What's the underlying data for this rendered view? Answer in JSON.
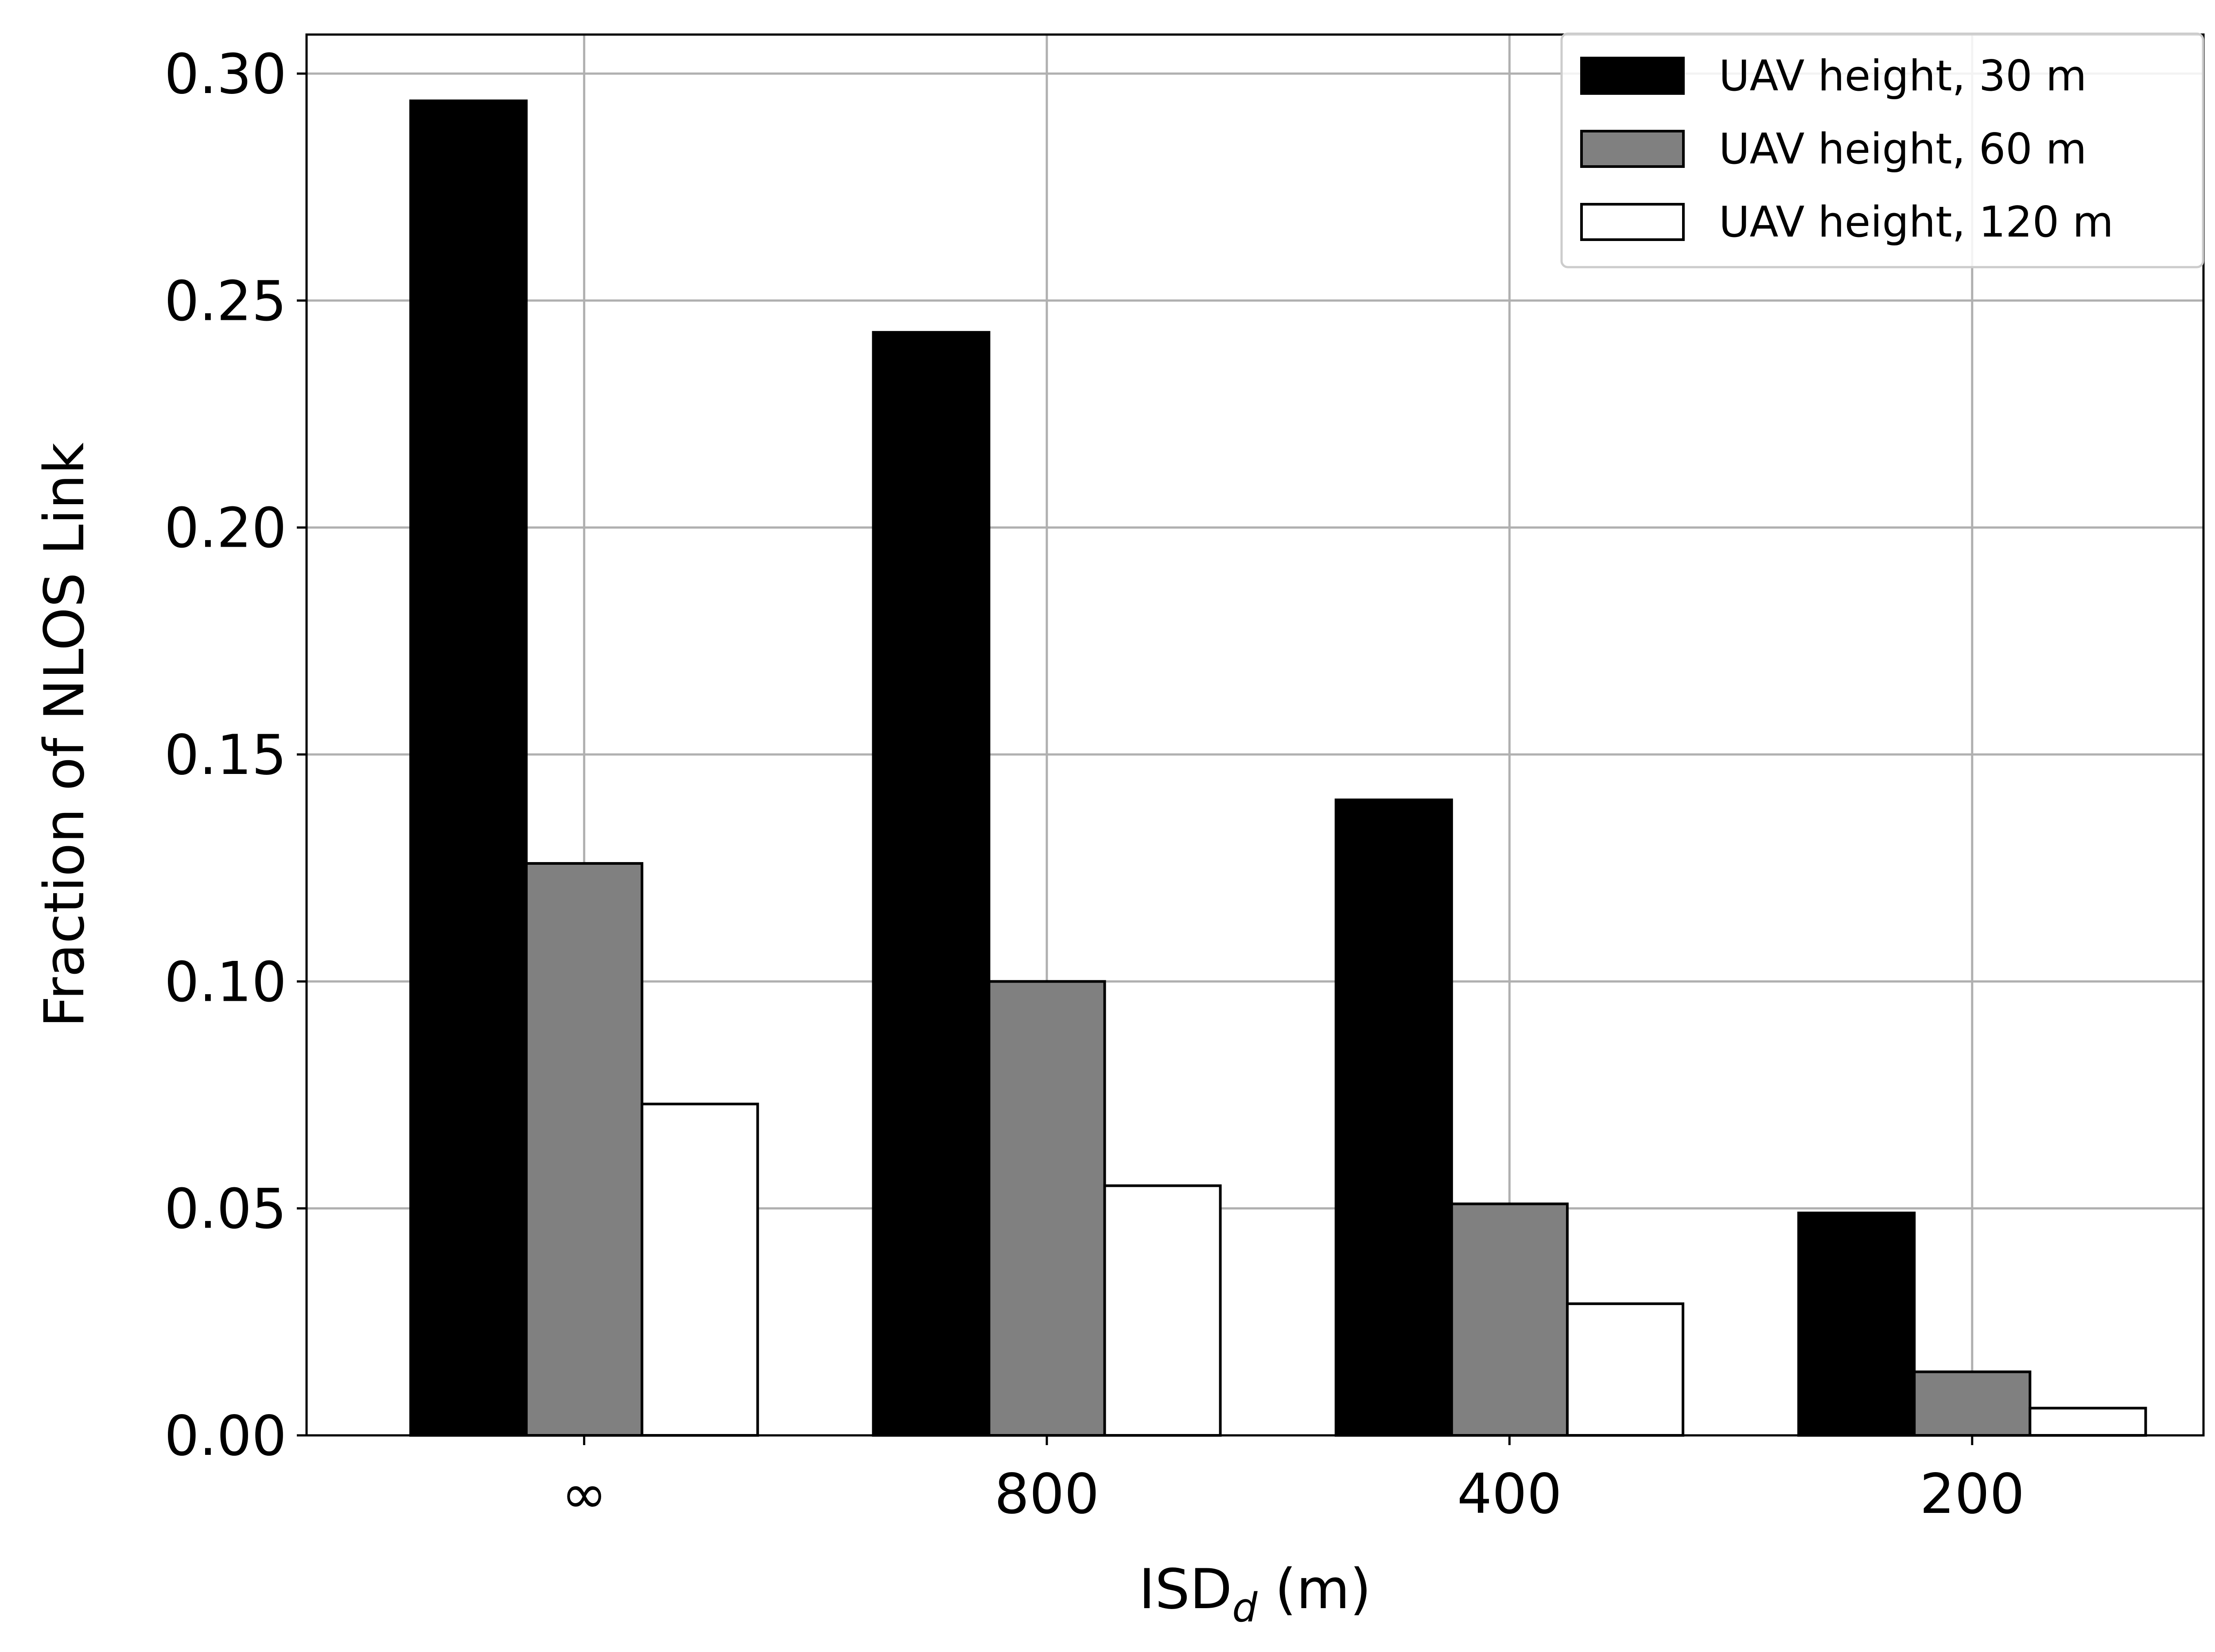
{
  "chart_data": {
    "type": "bar",
    "xlabel": "ISD",
    "xlabel_subscript": "d",
    "xlabel_suffix": " (m)",
    "ylabel": "Fraction of NLOS Link",
    "categories": [
      "∞",
      "800",
      "400",
      "200"
    ],
    "ylim": [
      0,
      0.3086
    ],
    "yticks": [
      0.0,
      0.05,
      0.1,
      0.15,
      0.2,
      0.25,
      0.3
    ],
    "ytick_labels": [
      "0.00",
      "0.05",
      "0.10",
      "0.15",
      "0.20",
      "0.25",
      "0.30"
    ],
    "grid": true,
    "legend_position": "top-right",
    "series": [
      {
        "name": "UAV height, 30 m",
        "values": [
          0.294,
          0.243,
          0.14,
          0.049
        ],
        "color": "#000000"
      },
      {
        "name": "UAV height, 60 m",
        "values": [
          0.126,
          0.1,
          0.051,
          0.014
        ],
        "color": "#808080"
      },
      {
        "name": "UAV height, 120 m",
        "values": [
          0.073,
          0.055,
          0.029,
          0.006
        ],
        "color": "#ffffff"
      }
    ]
  }
}
